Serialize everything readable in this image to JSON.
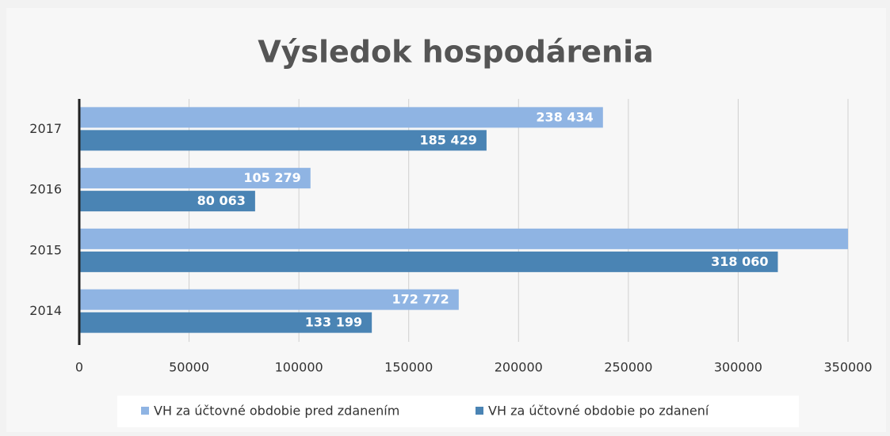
{
  "chart_data": {
    "type": "hbar",
    "title": "Výsledok hospodárenia",
    "categories": [
      "2014",
      "2015",
      "2016",
      "2017"
    ],
    "series": [
      {
        "name": "VH za účtovné obdobie pred zdanením",
        "color": "#8fb4e3",
        "values": [
          172772,
          350000,
          105279,
          238434
        ],
        "value_labels": [
          "172 772",
          null,
          "105 279",
          "238 434"
        ]
      },
      {
        "name": "VH za účtovné obdobie po zdanení",
        "color": "#4a84b4",
        "values": [
          133199,
          318060,
          80063,
          185429
        ],
        "value_labels": [
          "133 199",
          "318 060",
          "80 063",
          "185 429"
        ]
      }
    ],
    "xlim": [
      0,
      350000
    ],
    "xticks": [
      0,
      50000,
      100000,
      150000,
      200000,
      250000,
      300000,
      350000
    ],
    "grid": true,
    "legend": "bottom"
  }
}
